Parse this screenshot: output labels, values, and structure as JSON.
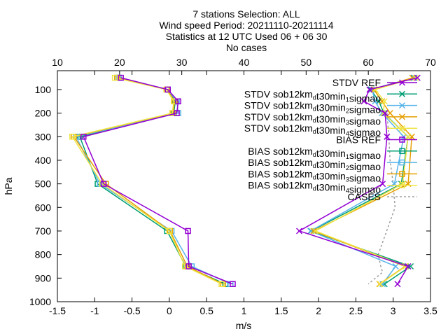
{
  "chart_data": {
    "type": "line",
    "title_lines": [
      "7 stations Selection: ALL",
      "Wind speed  Period: 20211110-20211114",
      "Statistics at 12 UTC  Used 06 + 06 30",
      "No cases"
    ],
    "xlabel": "m/s",
    "ylabel": "hPa",
    "x_bottom": {
      "range": [
        -1.5,
        3.5
      ],
      "ticks": [
        "-1.5",
        "-1",
        "-0.5",
        "0",
        "0.5",
        "1",
        "1.5",
        "2",
        "2.5",
        "3",
        "3.5"
      ]
    },
    "x_top": {
      "range": [
        10,
        70
      ],
      "ticks": [
        "10",
        "20",
        "30",
        "40",
        "50",
        "60",
        "70"
      ]
    },
    "y_axis": {
      "range": [
        1000,
        20
      ],
      "reversed": true,
      "ticks": [
        "100",
        "200",
        "300",
        "400",
        "500",
        "600",
        "700",
        "800",
        "900",
        "1000"
      ]
    },
    "grid": false,
    "legend_position": "top-right",
    "colors": {
      "REF": "#9400d3",
      "exp1": "#009e73",
      "exp2": "#56b4e9",
      "exp3": "#e69f00",
      "exp4": "#f0e442",
      "cases": "#a0a0a0"
    },
    "legend": [
      {
        "prefix": "STDV REF",
        "sub": "",
        "suffix": "",
        "color_key": "REF",
        "marker": "x"
      },
      {
        "prefix": "STDV sob12km",
        "sub": "d",
        "suffix": "t30min",
        "sub2": "1",
        "suffix2": "sigmao",
        "color_key": "exp1",
        "marker": "x"
      },
      {
        "prefix": "STDV sob12km",
        "sub": "d",
        "suffix": "t30min",
        "sub2": "2",
        "suffix2": "sigmao",
        "color_key": "exp2",
        "marker": "x"
      },
      {
        "prefix": "STDV sob12km",
        "sub": "d",
        "suffix": "t30min",
        "sub2": "3",
        "suffix2": "sigmao",
        "color_key": "exp3",
        "marker": "x"
      },
      {
        "prefix": "STDV sob12km",
        "sub": "d",
        "suffix": "t30min",
        "sub2": "4",
        "suffix2": "sigmao",
        "color_key": "exp4",
        "marker": "x"
      },
      {
        "prefix": "BIAS REF",
        "sub": "",
        "suffix": "",
        "color_key": "REF",
        "marker": "square"
      },
      {
        "prefix": "BIAS sob12km",
        "sub": "d",
        "suffix": "t30min",
        "sub2": "1",
        "suffix2": "sigmao",
        "color_key": "exp1",
        "marker": "square"
      },
      {
        "prefix": "BIAS sob12km",
        "sub": "d",
        "suffix": "t30min",
        "sub2": "2",
        "suffix2": "sigmao",
        "color_key": "exp2",
        "marker": "square"
      },
      {
        "prefix": "BIAS sob12km",
        "sub": "d",
        "suffix": "t30min",
        "sub2": "3",
        "suffix2": "sigmao",
        "color_key": "exp3",
        "marker": "square"
      },
      {
        "prefix": "BIAS sob12km",
        "sub": "d",
        "suffix": "t30min",
        "sub2": "4",
        "suffix2": "sigmao",
        "color_key": "exp4",
        "marker": "square"
      },
      {
        "prefix": "CASES",
        "sub": "",
        "suffix": "",
        "color_key": "cases",
        "marker": "dashed"
      }
    ],
    "pressure_levels": [
      50,
      100,
      150,
      200,
      300,
      500,
      700,
      850,
      925
    ],
    "bias_series": [
      {
        "color_key": "REF",
        "x": [
          -0.65,
          -0.02,
          0.12,
          0.1,
          -1.15,
          -0.88,
          0.25,
          0.26,
          0.85
        ]
      },
      {
        "color_key": "exp1",
        "x": [
          -0.68,
          -0.02,
          0.08,
          0.06,
          -1.2,
          -0.96,
          -0.03,
          0.22,
          0.75
        ]
      },
      {
        "color_key": "exp2",
        "x": [
          -0.68,
          -0.02,
          0.1,
          0.12,
          -1.25,
          -0.93,
          0.03,
          0.3,
          0.82
        ]
      },
      {
        "color_key": "exp3",
        "x": [
          -0.7,
          -0.03,
          0.07,
          0.05,
          -1.28,
          -0.85,
          0.01,
          0.24,
          0.72
        ]
      },
      {
        "color_key": "exp4",
        "x": [
          -0.73,
          -0.04,
          0.06,
          0.04,
          -1.3,
          -0.9,
          0.0,
          0.21,
          0.7
        ]
      }
    ],
    "stdv_series": [
      {
        "color_key": "REF",
        "x": [
          67.9,
          60.2,
          59.3,
          62.7,
          63.0,
          62.3,
          48.9,
          66.4,
          64.7
        ]
      },
      {
        "color_key": "exp1",
        "x": [
          67.3,
          60.4,
          61.7,
          62.5,
          66.4,
          65.3,
          50.8,
          66.8,
          62.6
        ]
      },
      {
        "color_key": "exp2",
        "x": [
          67.4,
          60.6,
          61.1,
          62.2,
          65.7,
          64.2,
          50.7,
          64.4,
          62.3
        ]
      },
      {
        "color_key": "exp3",
        "x": [
          67.1,
          60.9,
          62.2,
          63.5,
          67.0,
          66.4,
          51.2,
          65.9,
          61.8
        ]
      },
      {
        "color_key": "exp4",
        "x": [
          67.6,
          61.1,
          62.6,
          62.4,
          66.4,
          65.5,
          51.5,
          66.0,
          61.9
        ]
      }
    ],
    "cases_series": {
      "color_key": "cases",
      "x": [
        63.0,
        63.3,
        63.5,
        64.0,
        64.3,
        61.6,
        62.0,
        62.3,
        60.0
      ],
      "levels": [
        200,
        300,
        400,
        500,
        600,
        800,
        850,
        875,
        925
      ]
    }
  }
}
